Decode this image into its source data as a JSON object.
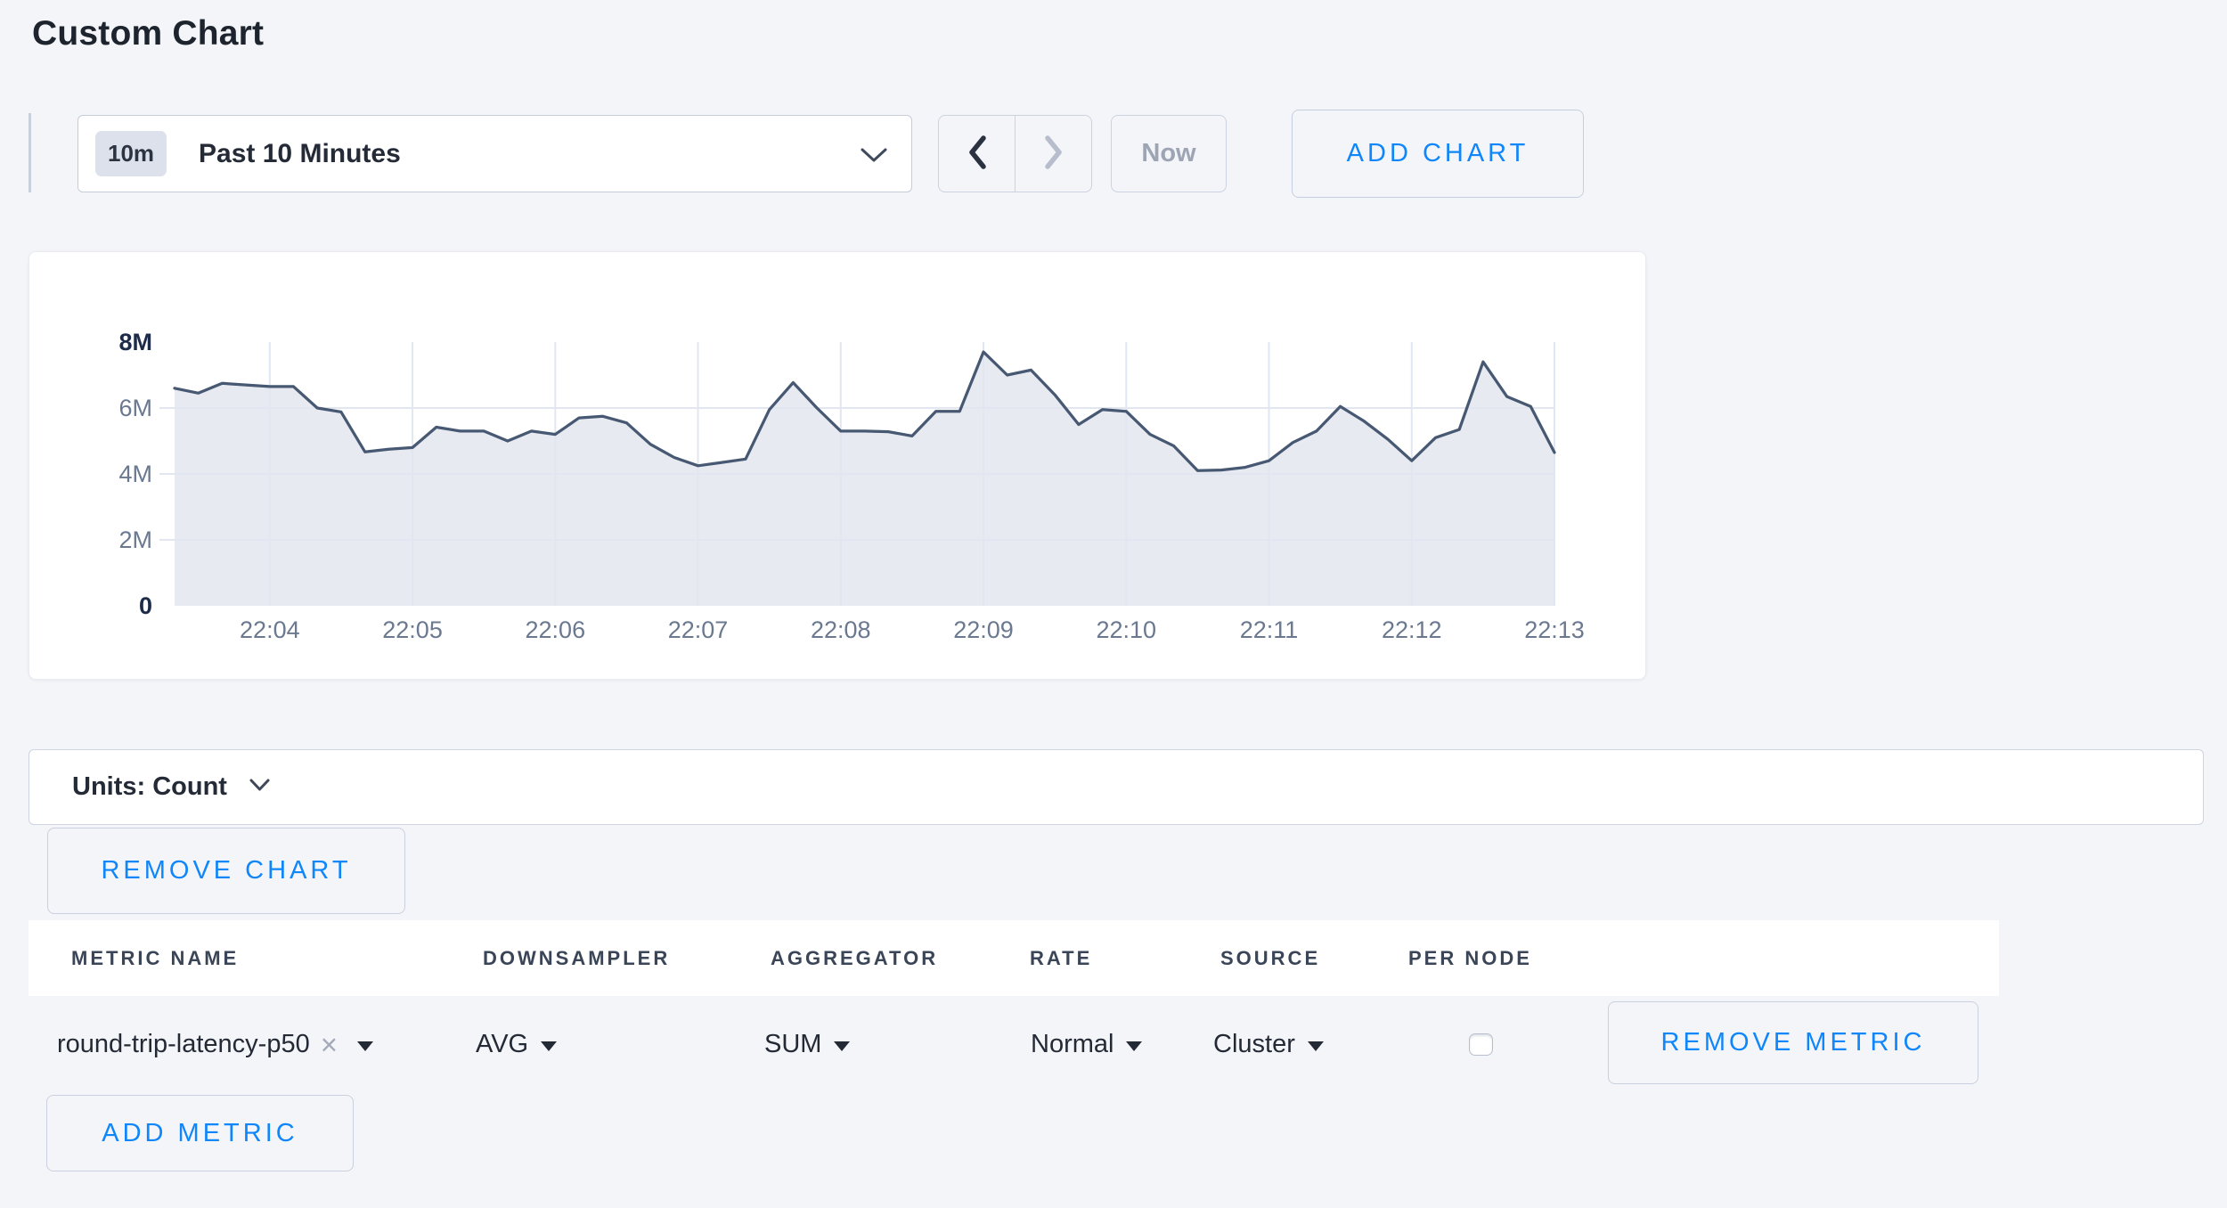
{
  "title": "Custom Chart",
  "time_selector": {
    "badge": "10m",
    "label": "Past 10 Minutes",
    "now_label": "Now"
  },
  "buttons": {
    "add_chart": "ADD CHART",
    "remove_chart": "REMOVE CHART",
    "remove_metric": "REMOVE METRIC",
    "add_metric": "ADD METRIC"
  },
  "units": {
    "label": "Units: Count"
  },
  "metrics_table": {
    "columns": [
      "METRIC NAME",
      "DOWNSAMPLER",
      "AGGREGATOR",
      "RATE",
      "SOURCE",
      "PER NODE"
    ],
    "rows": [
      {
        "metric_name": "round-trip-latency-p50",
        "downsampler": "AVG",
        "aggregator": "SUM",
        "rate": "Normal",
        "source": "Cluster",
        "per_node_checked": false
      }
    ]
  },
  "colors": {
    "accent_blue": "#0f86fa",
    "page_bg": "#f4f5f9",
    "line": "#475872",
    "area_fill": "#e8eaf1",
    "grid": "#e2e6f0",
    "axis_label": "#6a7890",
    "axis_label_strong": "#1d2b49"
  },
  "chart_data": {
    "type": "area",
    "title": "",
    "xlabel": "",
    "ylabel": "",
    "unit": "count",
    "grid": true,
    "legend": false,
    "ylim_millions": [
      0,
      8
    ],
    "y_tick_labels": [
      "0",
      "2M",
      "4M",
      "6M",
      "8M"
    ],
    "y_tick_values_millions": [
      0,
      2,
      4,
      6,
      8
    ],
    "x_tick_labels": [
      "22:04",
      "22:05",
      "22:06",
      "22:07",
      "22:08",
      "22:09",
      "22:10",
      "22:11",
      "22:12",
      "22:13"
    ],
    "x_tick_point_indices": [
      4,
      10,
      16,
      22,
      28,
      34,
      40,
      46,
      52,
      58
    ],
    "point_interval_seconds": 10,
    "series": [
      {
        "name": "round-trip-latency-p50",
        "values_millions": [
          6.6,
          6.45,
          6.75,
          6.7,
          6.65,
          6.65,
          6.0,
          5.88,
          4.67,
          4.75,
          4.8,
          5.42,
          5.3,
          5.3,
          5.0,
          5.3,
          5.2,
          5.7,
          5.75,
          5.55,
          4.9,
          4.5,
          4.25,
          4.35,
          4.45,
          5.95,
          6.77,
          6.0,
          5.3,
          5.3,
          5.28,
          5.15,
          5.9,
          5.9,
          7.7,
          7.0,
          7.15,
          6.4,
          5.5,
          5.95,
          5.9,
          5.2,
          4.85,
          4.1,
          4.12,
          4.2,
          4.4,
          4.95,
          5.3,
          6.05,
          5.6,
          5.05,
          4.4,
          5.1,
          5.35,
          7.4,
          6.35,
          6.05,
          4.65
        ]
      }
    ]
  }
}
